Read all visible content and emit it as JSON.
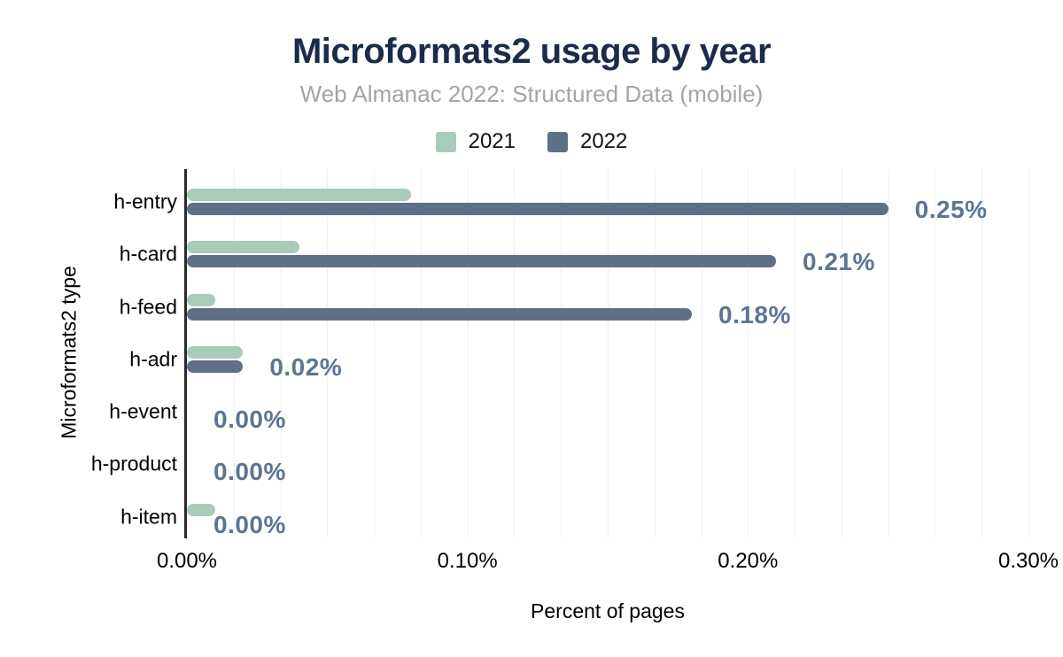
{
  "header": {
    "title": "Microformats2 usage by year",
    "subtitle": "Web Almanac 2022: Structured Data (mobile)"
  },
  "legend": [
    {
      "label": "2021",
      "color": "#a9cbb9"
    },
    {
      "label": "2022",
      "color": "#5f7086"
    }
  ],
  "colors": {
    "title": "#1b2b4a",
    "subtitle": "#a4a4a4",
    "series_2021": "#a9cbb9",
    "series_2022": "#5f7086",
    "data_label": "#5c7594",
    "axis_line": "#2b2b2b",
    "gridline": "#efefef",
    "background": "#ffffff"
  },
  "chart_data": {
    "type": "bar",
    "orientation": "horizontal",
    "title": "Microformats2 usage by year",
    "subtitle": "Web Almanac 2022: Structured Data (mobile)",
    "xlabel": "Percent of pages",
    "ylabel": "Microformats2 type",
    "categories": [
      "h-entry",
      "h-card",
      "h-feed",
      "h-adr",
      "h-event",
      "h-product",
      "h-item"
    ],
    "series": [
      {
        "name": "2021",
        "color": "#a9cbb9",
        "values": [
          0.08,
          0.04,
          0.01,
          0.02,
          0.0,
          0.0,
          0.01
        ]
      },
      {
        "name": "2022",
        "color": "#5f7086",
        "values": [
          0.25,
          0.21,
          0.18,
          0.02,
          0.0,
          0.0,
          0.0
        ]
      }
    ],
    "data_labels": {
      "attached_to_series": "2022",
      "texts": [
        "0.25%",
        "0.21%",
        "0.18%",
        "0.02%",
        "0.00%",
        "0.00%",
        "0.00%"
      ],
      "color": "#5c7594"
    },
    "x_ticks": [
      "0.00%",
      "0.10%",
      "0.20%",
      "0.30%"
    ],
    "xlim": [
      0,
      0.3
    ],
    "grid": "vertical, minor gridlines every 0.0167%",
    "legend_position": "top-center"
  }
}
